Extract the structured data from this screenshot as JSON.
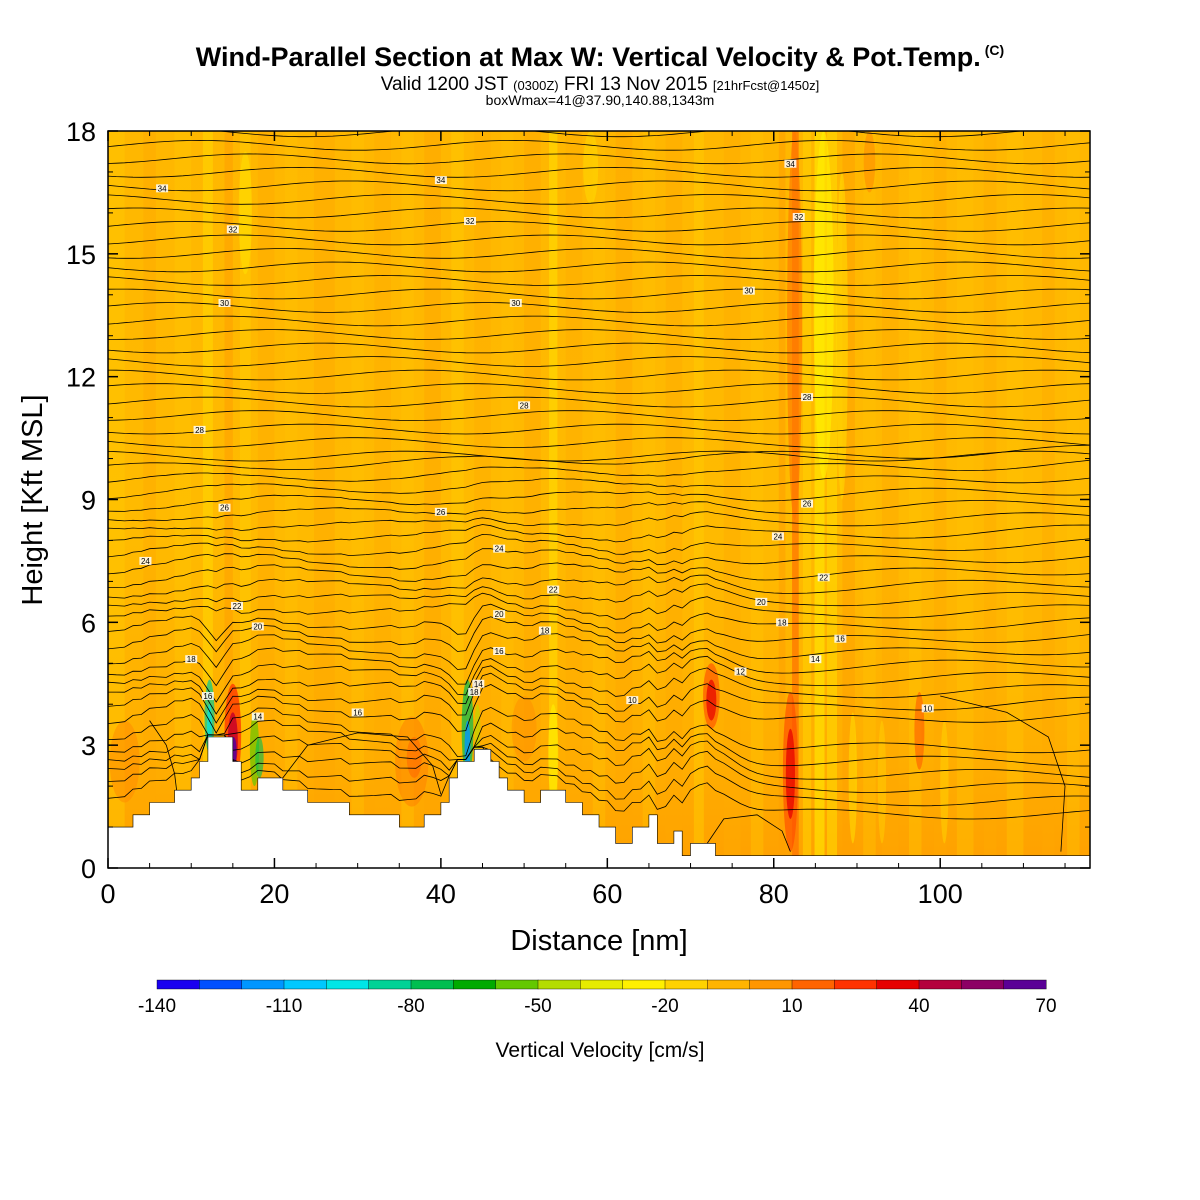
{
  "title": {
    "main": "Wind-Parallel Section at Max W: Vertical Velocity & Pot.Temp.",
    "copyright": "(C)",
    "valid_prefix": "Valid 1200 JST",
    "valid_utc": "(0300Z)",
    "valid_date": "FRI 13 Nov 2015",
    "forecast": "[21hrFcst@1450z]",
    "box": "boxWmax=41@37.90,140.88,1343m"
  },
  "chart_data": {
    "type": "heatmap",
    "xlabel": "Distance [nm]",
    "ylabel": "Height [Kft MSL]",
    "xlim": [
      0,
      118
    ],
    "ylim": [
      0,
      18
    ],
    "xticks": [
      0,
      20,
      40,
      60,
      80,
      100
    ],
    "yticks": [
      0,
      3,
      6,
      9,
      12,
      15,
      18
    ],
    "colorbar": {
      "label": "Vertical Velocity [cm/s]",
      "ticks": [
        -140,
        -110,
        -80,
        -50,
        -20,
        10,
        40,
        70
      ],
      "colors": [
        "#1a00f0",
        "#0050ff",
        "#0096ff",
        "#00c8ff",
        "#00e6e6",
        "#00d296",
        "#00be50",
        "#00aa00",
        "#64c800",
        "#b4dc00",
        "#e6eb00",
        "#fff000",
        "#ffd200",
        "#ffb400",
        "#ff9600",
        "#ff6400",
        "#ff3200",
        "#e60000",
        "#b4003c",
        "#8c0064",
        "#5a0096"
      ]
    },
    "theta_contours": [
      {
        "label": "34",
        "x": 6.5,
        "y": 16.6
      },
      {
        "label": "34",
        "x": 40,
        "y": 16.8
      },
      {
        "label": "34",
        "x": 82,
        "y": 17.2
      },
      {
        "label": "32",
        "x": 15,
        "y": 15.6
      },
      {
        "label": "32",
        "x": 43.5,
        "y": 15.8
      },
      {
        "label": "32",
        "x": 83,
        "y": 15.9
      },
      {
        "label": "30",
        "x": 14,
        "y": 13.8
      },
      {
        "label": "30",
        "x": 49,
        "y": 13.8
      },
      {
        "label": "30",
        "x": 77,
        "y": 14.1
      },
      {
        "label": "28",
        "x": 50,
        "y": 11.3
      },
      {
        "label": "28",
        "x": 84,
        "y": 11.5
      },
      {
        "label": "28",
        "x": 11,
        "y": 10.7
      },
      {
        "label": "26",
        "x": 14,
        "y": 8.8
      },
      {
        "label": "26",
        "x": 40,
        "y": 8.7
      },
      {
        "label": "26",
        "x": 84,
        "y": 8.9
      },
      {
        "label": "24",
        "x": 4.5,
        "y": 7.5
      },
      {
        "label": "24",
        "x": 47,
        "y": 7.8
      },
      {
        "label": "24",
        "x": 80.5,
        "y": 8.1
      },
      {
        "label": "22",
        "x": 53.5,
        "y": 6.8
      },
      {
        "label": "22",
        "x": 86,
        "y": 7.1
      },
      {
        "label": "22",
        "x": 15.5,
        "y": 6.4
      },
      {
        "label": "20",
        "x": 18,
        "y": 5.9
      },
      {
        "label": "20",
        "x": 47,
        "y": 6.2
      },
      {
        "label": "20",
        "x": 78.5,
        "y": 6.5
      },
      {
        "label": "18",
        "x": 52.5,
        "y": 5.8
      },
      {
        "label": "18",
        "x": 81,
        "y": 6.0
      },
      {
        "label": "18",
        "x": 10,
        "y": 5.1
      },
      {
        "label": "18",
        "x": 44,
        "y": 4.3
      },
      {
        "label": "16",
        "x": 47,
        "y": 5.3
      },
      {
        "label": "16",
        "x": 88,
        "y": 5.6
      },
      {
        "label": "16",
        "x": 12,
        "y": 4.2
      },
      {
        "label": "16",
        "x": 30,
        "y": 3.8
      },
      {
        "label": "14",
        "x": 85,
        "y": 5.1
      },
      {
        "label": "14",
        "x": 18,
        "y": 3.7
      },
      {
        "label": "14",
        "x": 44.5,
        "y": 4.5
      },
      {
        "label": "12",
        "x": 76,
        "y": 4.8
      },
      {
        "label": "10",
        "x": 63,
        "y": 4.1
      },
      {
        "label": "10",
        "x": 98.5,
        "y": 3.9
      }
    ],
    "notable_features": [
      {
        "type": "updraft",
        "x": 15,
        "value_cm_s": 70
      },
      {
        "type": "downdraft",
        "x": 12,
        "value_cm_s": -80
      },
      {
        "type": "downdraft",
        "x": 43,
        "value_cm_s": -110
      },
      {
        "type": "updraft",
        "x": 72.5,
        "value_cm_s": 40
      },
      {
        "type": "updraft",
        "x": 82,
        "value_cm_s": 40
      },
      {
        "type": "downdraft_band",
        "x": 86,
        "value_cm_s": -20
      }
    ],
    "terrain": [
      [
        0,
        1.0
      ],
      [
        3,
        1.0
      ],
      [
        3,
        1.3
      ],
      [
        5,
        1.3
      ],
      [
        5,
        1.6
      ],
      [
        8,
        1.6
      ],
      [
        8,
        1.9
      ],
      [
        10,
        1.9
      ],
      [
        10,
        2.2
      ],
      [
        11,
        2.2
      ],
      [
        11,
        2.6
      ],
      [
        12,
        2.6
      ],
      [
        12,
        3.2
      ],
      [
        15,
        3.2
      ],
      [
        15,
        2.6
      ],
      [
        16,
        2.6
      ],
      [
        16,
        1.9
      ],
      [
        18,
        1.9
      ],
      [
        18,
        2.2
      ],
      [
        21,
        2.2
      ],
      [
        21,
        1.9
      ],
      [
        24,
        1.9
      ],
      [
        24,
        1.6
      ],
      [
        29,
        1.6
      ],
      [
        29,
        1.3
      ],
      [
        35,
        1.3
      ],
      [
        35,
        1.0
      ],
      [
        38,
        1.0
      ],
      [
        38,
        1.3
      ],
      [
        40,
        1.3
      ],
      [
        40,
        1.6
      ],
      [
        41,
        1.6
      ],
      [
        41,
        2.2
      ],
      [
        42,
        2.2
      ],
      [
        42,
        2.6
      ],
      [
        44,
        2.6
      ],
      [
        44,
        2.9
      ],
      [
        46,
        2.9
      ],
      [
        46,
        2.6
      ],
      [
        47,
        2.6
      ],
      [
        47,
        2.2
      ],
      [
        48,
        2.2
      ],
      [
        48,
        1.9
      ],
      [
        50,
        1.9
      ],
      [
        50,
        1.6
      ],
      [
        52,
        1.6
      ],
      [
        52,
        1.9
      ],
      [
        55,
        1.9
      ],
      [
        55,
        1.6
      ],
      [
        57,
        1.6
      ],
      [
        57,
        1.3
      ],
      [
        59,
        1.3
      ],
      [
        59,
        1.0
      ],
      [
        61,
        1.0
      ],
      [
        61,
        0.6
      ],
      [
        63,
        0.6
      ],
      [
        63,
        1.0
      ],
      [
        65,
        1.0
      ],
      [
        65,
        1.3
      ],
      [
        66,
        1.3
      ],
      [
        66,
        0.6
      ],
      [
        68,
        0.6
      ],
      [
        68,
        0.9
      ],
      [
        69,
        0.9
      ],
      [
        69,
        0.3
      ],
      [
        70,
        0.3
      ],
      [
        70,
        0.6
      ],
      [
        73,
        0.6
      ],
      [
        73,
        0.3
      ],
      [
        118,
        0.3
      ]
    ]
  }
}
